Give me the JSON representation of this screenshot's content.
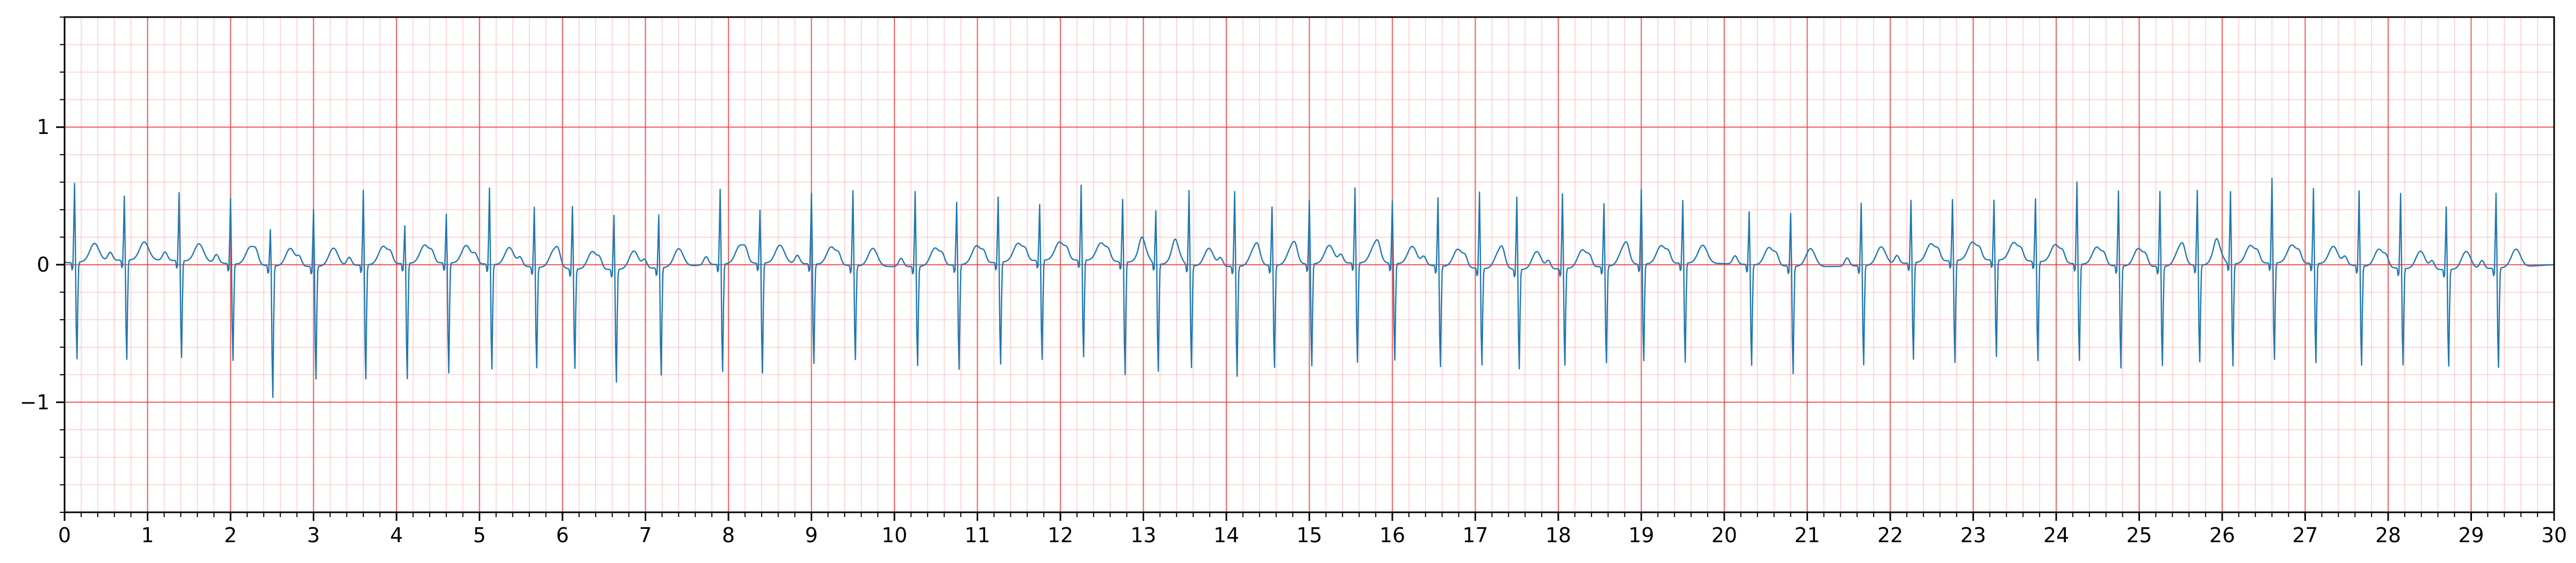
{
  "chart_data": {
    "type": "line",
    "title": "",
    "xlabel": "",
    "ylabel": "",
    "xlim": [
      0,
      30
    ],
    "ylim": [
      -1.8,
      1.8
    ],
    "x_ticks": [
      0,
      1,
      2,
      3,
      4,
      5,
      6,
      7,
      8,
      9,
      10,
      11,
      12,
      13,
      14,
      15,
      16,
      17,
      18,
      19,
      20,
      21,
      22,
      23,
      24,
      25,
      26,
      27,
      28,
      29,
      30
    ],
    "x_tick_labels": [
      "0",
      "1",
      "2",
      "3",
      "4",
      "5",
      "6",
      "7",
      "8",
      "9",
      "10",
      "11",
      "12",
      "13",
      "14",
      "15",
      "16",
      "17",
      "18",
      "19",
      "20",
      "21",
      "22",
      "23",
      "24",
      "25",
      "26",
      "27",
      "28",
      "29",
      "30"
    ],
    "y_ticks": [
      -1,
      0,
      1
    ],
    "y_tick_labels": [
      "−1",
      "0",
      "1"
    ],
    "x_minor_step": 0.2,
    "y_minor_step": 0.2,
    "grid": "major and minor (ECG paper)",
    "grid_major_color": "#ee3333",
    "grid_minor_color": "#ff8888",
    "line_color": "#1f77b4",
    "sample_rate_hz": 100,
    "beats": {
      "r_times": [
        0.12,
        0.72,
        1.38,
        2.0,
        2.48,
        3.0,
        3.6,
        4.1,
        4.6,
        5.12,
        5.66,
        6.12,
        6.62,
        7.16,
        7.9,
        8.38,
        9.0,
        9.5,
        10.25,
        10.75,
        11.25,
        11.75,
        12.25,
        12.75,
        13.15,
        13.55,
        14.1,
        14.55,
        15.0,
        15.55,
        16.0,
        16.55,
        17.05,
        17.5,
        18.05,
        18.55,
        19.0,
        19.5,
        20.3,
        20.8,
        21.65,
        22.25,
        22.75,
        23.25,
        23.75,
        24.25,
        24.75,
        25.25,
        25.7,
        26.1,
        26.6,
        27.1,
        27.65,
        28.15,
        28.7,
        29.3
      ],
      "r_amplitudes": [
        0.58,
        0.47,
        0.5,
        0.48,
        0.27,
        0.42,
        0.55,
        0.28,
        0.36,
        0.56,
        0.44,
        0.46,
        0.4,
        0.39,
        0.55,
        0.39,
        0.52,
        0.55,
        0.55,
        0.46,
        0.48,
        0.41,
        0.55,
        0.46,
        0.39,
        0.55,
        0.55,
        0.43,
        0.47,
        0.55,
        0.46,
        0.5,
        0.56,
        0.53,
        0.55,
        0.46,
        0.55,
        0.46,
        0.39,
        0.39,
        0.46,
        0.46,
        0.45,
        0.44,
        0.46,
        0.6,
        0.55,
        0.55,
        0.55,
        0.53,
        0.62,
        0.55,
        0.55,
        0.55,
        0.46,
        0.55
      ],
      "s_amplitudes": [
        -0.72,
        -0.74,
        -0.72,
        -0.72,
        -0.98,
        -0.84,
        -0.85,
        -0.86,
        -0.82,
        -0.78,
        -0.75,
        -0.74,
        -0.84,
        -0.8,
        -0.8,
        -0.82,
        -0.74,
        -0.7,
        -0.74,
        -0.78,
        -0.76,
        -0.74,
        -0.72,
        -0.84,
        -0.8,
        -0.76,
        -0.82,
        -0.76,
        -0.76,
        -0.74,
        -0.72,
        -0.75,
        -0.72,
        -0.74,
        -0.72,
        -0.72,
        -0.72,
        -0.74,
        -0.75,
        -0.8,
        -0.74,
        -0.72,
        -0.76,
        -0.72,
        -0.74,
        -0.72,
        -0.76,
        -0.74,
        -0.72,
        -0.76,
        -0.72,
        -0.74,
        -0.74,
        -0.72,
        -0.72,
        -0.74
      ]
    }
  }
}
